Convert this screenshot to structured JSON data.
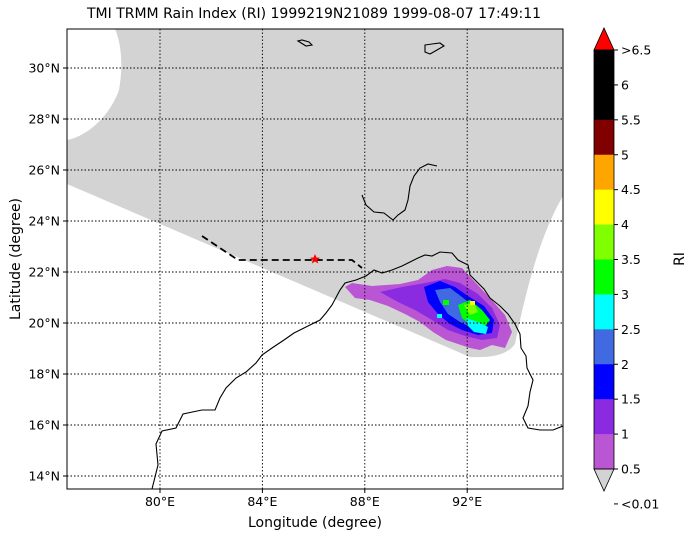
{
  "title": "TMI TRMM Rain Index (RI) 1999219N21089 1999-08-07 17:49:11",
  "xlabel": "Longitude (degree)",
  "ylabel": "Latitude (degree)",
  "lon_ticks": [
    "80°E",
    "84°E",
    "88°E",
    "92°E"
  ],
  "lat_ticks": [
    "30°N",
    "28°N",
    "26°N",
    "24°N",
    "22°N",
    "20°N",
    "18°N",
    "16°N",
    "14°N"
  ],
  "colorbar": {
    "label": "RI",
    "tick_labels": [
      ">6.5",
      "6",
      "5.5",
      "5",
      "4.5",
      "4",
      "3.5",
      "3",
      "2.5",
      "2",
      "1.5",
      "1",
      "0.5",
      "<0.01"
    ],
    "colors": [
      "#ff0000",
      "#000000",
      "#000000",
      "#800000",
      "#ffa500",
      "#ffff00",
      "#7fff00",
      "#00ff00",
      "#00ffff",
      "#4169e1",
      "#0000ff",
      "#8a2be2",
      "#ba55d3",
      "#d3d3d3"
    ]
  },
  "colors": {
    "swath": "#d3d3d3",
    "track": "#000000",
    "storm_marker": "#ff0000"
  },
  "storm_marker": {
    "lon": 86.0,
    "lat": 22.5,
    "symbol": "star"
  },
  "map_extent": {
    "lon": [
      76.3,
      95.7
    ],
    "lat": [
      13.6,
      31.5
    ]
  }
}
